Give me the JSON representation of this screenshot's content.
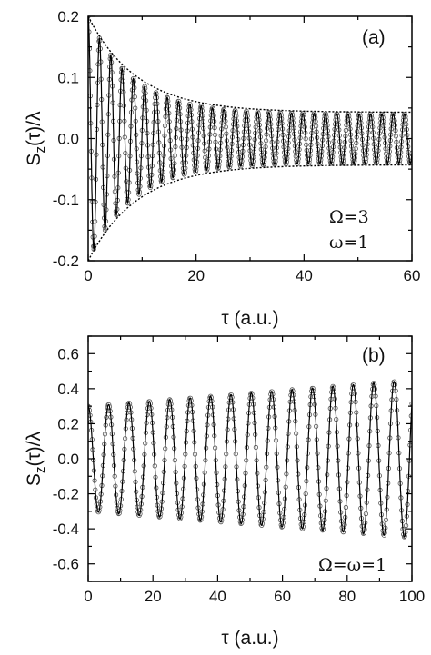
{
  "chart_data": [
    {
      "type": "line",
      "panel_label": "(a)",
      "xlabel": "τ (a.u.)",
      "ylabel_main": "S",
      "ylabel_sub": "z",
      "ylabel_rest": "(τ)/λ",
      "xlim": [
        0,
        60
      ],
      "ylim": [
        -0.2,
        0.2
      ],
      "xticks": [
        0,
        20,
        40,
        60
      ],
      "yticks": [
        -0.2,
        -0.1,
        0.0,
        0.1,
        0.2
      ],
      "ytick_labels": [
        "-0.2",
        "-0.1",
        "0.0",
        "0.1",
        "0.2"
      ],
      "annotations": [
        "Ω=3",
        "ω=1"
      ],
      "series": [
        {
          "style": "oscillation",
          "amplitude": 0.2,
          "decay_floor": 0.04,
          "decay_rate": 0.12,
          "frequency": 3,
          "start": 1,
          "markers": "open-circles"
        },
        {
          "style": "dotted-envelope",
          "upper_start": 0.2,
          "upper_end": 0.043,
          "lower_start": -0.2,
          "lower_end": -0.043
        }
      ],
      "grid": false
    },
    {
      "type": "line",
      "panel_label": "(b)",
      "xlabel": "τ (a.u.)",
      "ylabel_main": "S",
      "ylabel_sub": "z",
      "ylabel_rest": "(τ)/λ",
      "xlim": [
        0,
        100
      ],
      "ylim": [
        -0.7,
        0.7
      ],
      "xticks": [
        0,
        20,
        40,
        60,
        80,
        100
      ],
      "yticks": [
        -0.6,
        -0.4,
        -0.2,
        0.0,
        0.2,
        0.4,
        0.6
      ],
      "ytick_labels": [
        "-0.6",
        "-0.4",
        "-0.2",
        "0.0",
        "0.2",
        "0.4",
        "0.6"
      ],
      "annotations": [
        "Ω=ω=1"
      ],
      "series": [
        {
          "style": "oscillation",
          "amplitude_start": 0.3,
          "amplitude_end": 0.45,
          "frequency": 1,
          "period": 6.3,
          "start": 0.27,
          "markers": "open-circles"
        }
      ],
      "grid": false
    }
  ]
}
